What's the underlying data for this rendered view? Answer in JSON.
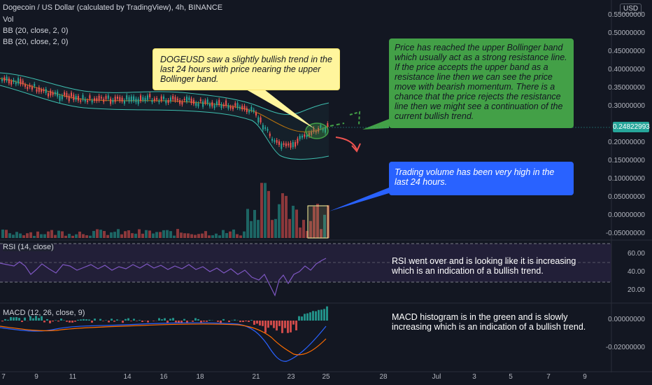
{
  "header": {
    "symbol_title": "Dogecoin / US Dollar (calculated by TradingView), 4h, BINANCE",
    "vol_label": "Vol",
    "bb1_label": "BB (20, close, 2, 0)",
    "bb2_label": "BB (20, close, 2, 0)",
    "rsi_label": "RSI (14, close)",
    "macd_label": "MACD (12, 26, close, 9)"
  },
  "price_axis": {
    "currency": "USD",
    "ticks": [
      "0.55000000",
      "0.50000000",
      "0.45000000",
      "0.40000000",
      "0.35000000",
      "0.30000000",
      "0.25000000",
      "0.20000000",
      "0.15000000",
      "0.10000000",
      "0.05000000",
      "0.00000000",
      "-0.05000000"
    ],
    "last_price": "0.24822993"
  },
  "rsi_axis": {
    "ticks": [
      "60.00",
      "40.00",
      "20.00"
    ]
  },
  "macd_axis": {
    "ticks": [
      "0.00000000",
      "-0.02000000"
    ]
  },
  "time_axis": {
    "labels": [
      "7",
      "9",
      "11",
      "14",
      "16",
      "18",
      "21",
      "23",
      "25",
      "28",
      "Jul",
      "3",
      "5",
      "7",
      "9"
    ]
  },
  "notes": {
    "yellow": "DOGEUSD saw a slightly bullish trend in the last 24 hours with price nearing the upper Bollinger band.",
    "green": "Price has reached the upper Bollinger band which usually act as a strong resistance line. If the price accepts the upper band as a resistance line then we can see the price move with bearish momentum. There is a chance that the price rejects the resistance line then we might see a continuation of the current bullish trend.",
    "blue": "Trading volume has been very high in the last 24 hours.",
    "rsi": "RSI went over and is looking like it is increasing which is an indication of a bullish trend.",
    "macd": "MACD histogram is in the green and is slowly increasing which is an indication of a bullish trend."
  },
  "colors": {
    "background": "#131722",
    "up": "#26a69a",
    "down": "#ef5350",
    "rsi_line": "#7e57c2",
    "macd_line": "#2962ff",
    "signal_line": "#ff6d00",
    "bb_band": "#3ebfb0",
    "bb_basis": "#ff9800"
  }
}
